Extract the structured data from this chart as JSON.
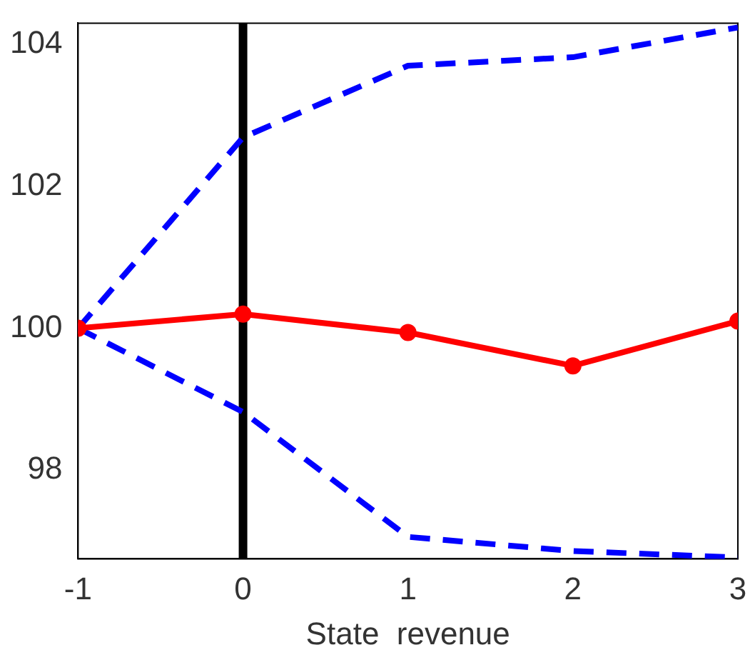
{
  "chart_data": {
    "type": "line",
    "xlabel": "State  revenue",
    "x": [
      -1,
      0,
      1,
      2,
      3
    ],
    "series": [
      {
        "color": "#ff0000",
        "values": [
          100,
          100.2,
          99.94,
          99.47,
          100.1
        ],
        "marker": "circle",
        "line_style": "solid"
      },
      {
        "color": "#0000ff",
        "values": [
          100,
          102.69,
          103.7,
          103.82,
          104.24
        ],
        "marker": "none",
        "line_style": "dashed"
      },
      {
        "color": "#0000ff",
        "values": [
          100,
          98.82,
          97.06,
          96.86,
          96.77
        ],
        "marker": "none",
        "line_style": "dashed"
      }
    ],
    "xlim": [
      -1,
      3
    ],
    "xticks": [
      -1,
      0,
      1,
      2,
      3
    ],
    "ylim": [
      96.75,
      104.3
    ],
    "yticks": [
      98,
      100,
      102,
      104
    ],
    "grid": false,
    "legend": false,
    "ref_lines": [
      {
        "axis": "x",
        "value": 0,
        "color": "#000000"
      }
    ]
  }
}
